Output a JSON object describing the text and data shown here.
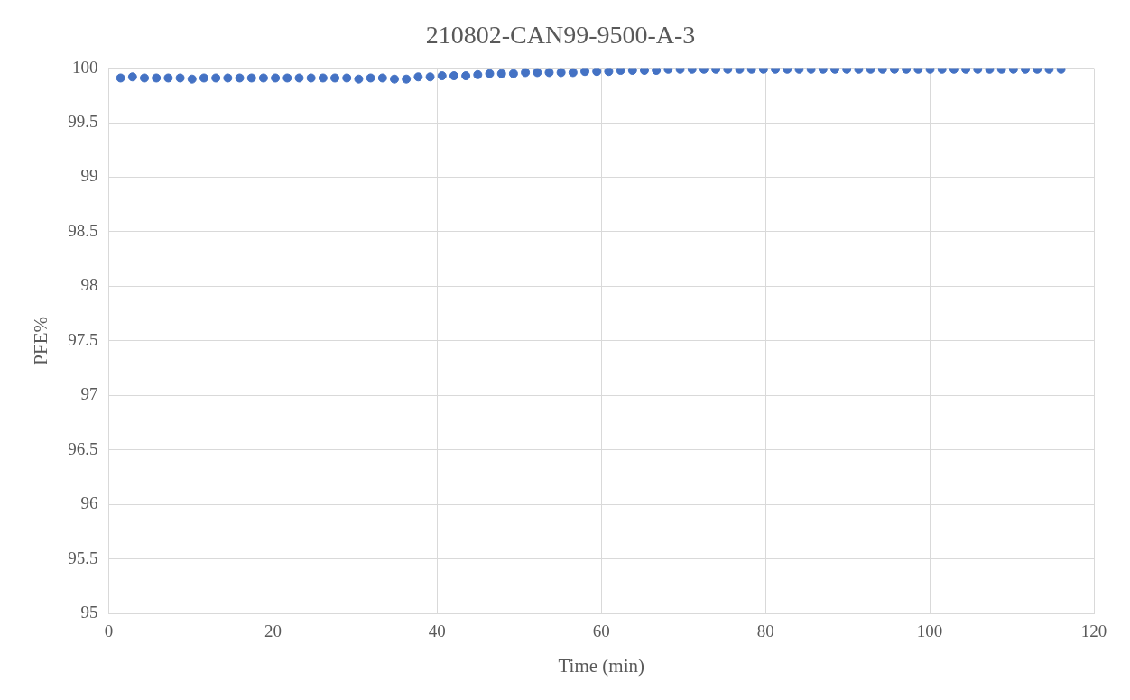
{
  "chart_data": {
    "type": "scatter",
    "title": "210802-CAN99-9500-A-3",
    "xlabel": "Time (min)",
    "ylabel": "PFE%",
    "x": [
      1.45,
      2.9,
      4.35,
      5.8,
      7.25,
      8.7,
      10.15,
      11.6,
      13.05,
      14.5,
      15.95,
      17.4,
      18.85,
      20.3,
      21.75,
      23.2,
      24.65,
      26.1,
      27.55,
      29,
      30.45,
      31.9,
      33.35,
      34.8,
      36.25,
      37.7,
      39.15,
      40.6,
      42.05,
      43.5,
      44.95,
      46.4,
      47.85,
      49.3,
      50.75,
      52.2,
      53.65,
      55.1,
      56.55,
      58,
      59.45,
      60.9,
      62.35,
      63.8,
      65.25,
      66.7,
      68.15,
      69.6,
      71.05,
      72.5,
      73.95,
      75.4,
      76.85,
      78.3,
      79.75,
      81.2,
      82.65,
      84.1,
      85.55,
      87,
      88.45,
      89.9,
      91.35,
      92.8,
      94.25,
      95.7,
      97.15,
      98.6,
      100.05,
      101.5,
      102.95,
      104.4,
      105.85,
      107.3,
      108.75,
      110.2,
      111.65,
      113.1,
      114.55,
      116
    ],
    "series": [
      {
        "color": "#4472c4",
        "values": [
          99.91,
          99.92,
          99.91,
          99.91,
          99.91,
          99.91,
          99.9,
          99.91,
          99.91,
          99.91,
          99.91,
          99.91,
          99.91,
          99.91,
          99.91,
          99.91,
          99.91,
          99.91,
          99.91,
          99.91,
          99.9,
          99.91,
          99.91,
          99.9,
          99.9,
          99.92,
          99.92,
          99.93,
          99.93,
          99.93,
          99.94,
          99.95,
          99.95,
          99.95,
          99.96,
          99.96,
          99.96,
          99.96,
          99.96,
          99.97,
          99.97,
          99.97,
          99.98,
          99.98,
          99.98,
          99.98,
          99.99,
          99.99,
          99.99,
          99.99,
          99.99,
          99.99,
          99.99,
          99.99,
          99.99,
          99.99,
          99.99,
          99.99,
          99.99,
          99.99,
          99.99,
          99.99,
          99.99,
          99.99,
          99.99,
          99.99,
          99.99,
          99.99,
          99.99,
          99.99,
          99.99,
          99.99,
          99.99,
          99.99,
          99.99,
          99.99,
          99.99,
          99.99,
          99.99,
          99.99
        ]
      }
    ],
    "xlim": [
      0,
      120
    ],
    "xticks": [
      0,
      20,
      40,
      60,
      80,
      100,
      120
    ],
    "ylim": [
      95,
      100
    ],
    "yticks": [
      95,
      95.5,
      96,
      96.5,
      97,
      97.5,
      98,
      98.5,
      99,
      99.5,
      100
    ],
    "grid": true,
    "legend": false,
    "marker": "circle"
  }
}
